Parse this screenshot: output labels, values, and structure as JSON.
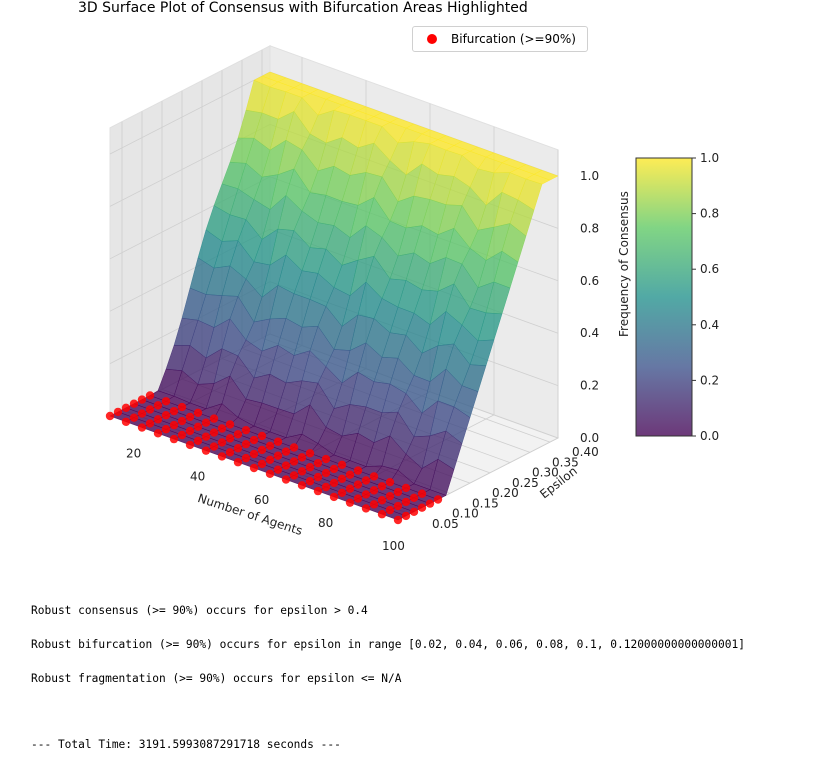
{
  "figure": {
    "title": "3D Surface Plot of Consensus with Bifurcation Areas Highlighted",
    "legend_label": "Bifurcation (>=90%)",
    "marker_color": "#ff0000"
  },
  "chart_data": {
    "type": "surface3d",
    "x_axis": {
      "label": "Number of Agents",
      "ticks": [
        "20",
        "40",
        "60",
        "80",
        "100"
      ],
      "range": [
        10,
        100
      ]
    },
    "y_axis": {
      "label": "Epsilon",
      "ticks": [
        "0.05",
        "0.10",
        "0.15",
        "0.20",
        "0.25",
        "0.30",
        "0.35",
        "0.40"
      ],
      "range": [
        0.02,
        0.42
      ]
    },
    "z_axis": {
      "label": "Frequency of Consensus",
      "ticks": [
        "0.0",
        "0.2",
        "0.4",
        "0.6",
        "0.8",
        "1.0"
      ],
      "range": [
        0,
        1
      ]
    },
    "colorbar": {
      "ticks": [
        "0.0",
        "0.2",
        "0.4",
        "0.6",
        "0.8",
        "1.0"
      ],
      "colormap": "viridis",
      "range": [
        0,
        1
      ]
    },
    "surface_description": {
      "low_plateau": {
        "epsilon_max": 0.12,
        "value": 0.0
      },
      "transition": {
        "epsilon_from": 0.14,
        "epsilon_to": 0.38
      },
      "high_plateau": {
        "epsilon_min": 0.4,
        "value": 1.0
      }
    },
    "bifurcation_points": {
      "epsilon": [
        0.02,
        0.04,
        0.06,
        0.08,
        0.1,
        0.12
      ],
      "agents_start": 10,
      "agents_end": 100,
      "agents_step": 5
    },
    "grid": true
  },
  "console": {
    "line1": "Robust consensus (>= 90%) occurs for epsilon > 0.4",
    "line2": "Robust bifurcation (>= 90%) occurs for epsilon in range [0.02, 0.04, 0.06, 0.08, 0.1, 0.12000000000000001]",
    "line3": "Robust fragmentation (>= 90%) occurs for epsilon <= N/A",
    "line4": "--- Total Time: 3191.5993087291718 seconds ---"
  }
}
